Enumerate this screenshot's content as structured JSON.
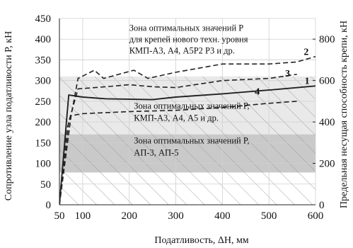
{
  "chart_data": {
    "type": "line",
    "xlabel": "Податливость, ΔH, мм",
    "ylabel_left": "Сопротивление узла податливости P, кН",
    "ylabel_right": "Предельная несущая способность крепи, кН",
    "xlim": [
      50,
      600
    ],
    "ylim_left": [
      0,
      450
    ],
    "ylim_right": [
      0,
      900
    ],
    "x_ticks": [
      "50",
      "100",
      "200",
      "300",
      "400",
      "500",
      "600"
    ],
    "y_ticks_left": [
      "0",
      "50",
      "100",
      "150",
      "200",
      "250",
      "300",
      "350",
      "400",
      "450"
    ],
    "y_ticks_right": [
      "0",
      "200",
      "400",
      "600",
      "800"
    ],
    "grid": true,
    "zones": [
      {
        "label_lines": [
          "Зона оптимальных значений P",
          "для крепей нового техн. уровня",
          "КМП-А3, А4, А5Р2 Р3 и др."
        ],
        "range": [
          310,
          450
        ],
        "color": "#ffffff",
        "hatched": false
      },
      {
        "label_lines": [
          "Зона оптимальных значений P,",
          "КМП-А3, А4, А5 и др."
        ],
        "range": [
          170,
          310
        ],
        "color": "#e9e9e9",
        "hatched": true
      },
      {
        "label_lines": [
          "Зона оптимальных значений P,",
          "АП-3, АП-5"
        ],
        "range": [
          78,
          170
        ],
        "color": "#c9c9c9",
        "hatched": true
      }
    ],
    "series": [
      {
        "name": "1",
        "style": "solid",
        "x": [
          50,
          65,
          70,
          100,
          150,
          250,
          300,
          400,
          500,
          600
        ],
        "y": [
          0,
          200,
          265,
          260,
          256,
          254,
          260,
          268,
          277,
          287
        ]
      },
      {
        "name": "2",
        "style": "dashed",
        "x": [
          50,
          75,
          90,
          125,
          145,
          210,
          240,
          300,
          400,
          500,
          560,
          600
        ],
        "y": [
          0,
          215,
          305,
          325,
          305,
          325,
          305,
          320,
          340,
          340,
          345,
          358
        ]
      },
      {
        "name": "3",
        "style": "dashed",
        "x": [
          50,
          70,
          90,
          150,
          200,
          250,
          300,
          400,
          500,
          560
        ],
        "y": [
          0,
          200,
          280,
          285,
          290,
          285,
          283,
          300,
          305,
          315
        ]
      },
      {
        "name": "4",
        "style": "dashed",
        "x": [
          50,
          65,
          75,
          100,
          200,
          300,
          400,
          500,
          560
        ],
        "y": [
          0,
          180,
          215,
          220,
          225,
          228,
          235,
          245,
          250
        ]
      }
    ]
  }
}
